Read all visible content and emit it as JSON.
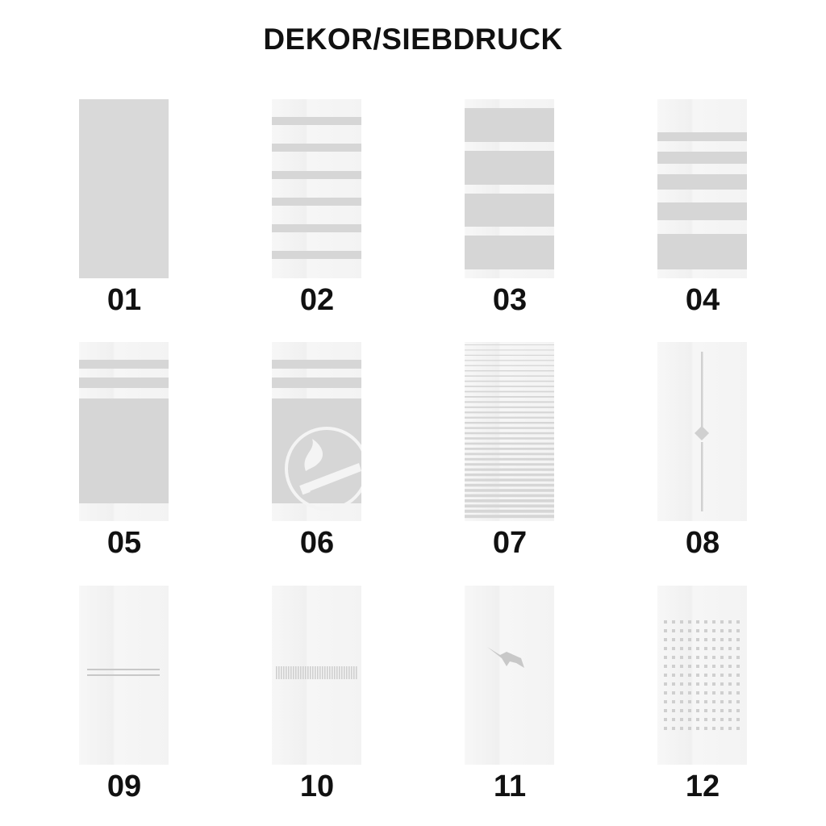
{
  "title": "DEKOR/SIEBDRUCK",
  "colors": {
    "glass": "#f4f4f4",
    "print": "#d6d6d6",
    "text": "#111111"
  },
  "designs": [
    {
      "label": "01",
      "pattern": "full-frosted"
    },
    {
      "label": "02",
      "pattern": "six-thin-stripes"
    },
    {
      "label": "03",
      "pattern": "four-wide-blocks"
    },
    {
      "label": "04",
      "pattern": "graduated-stripes"
    },
    {
      "label": "05",
      "pattern": "two-stripes-and-block"
    },
    {
      "label": "06",
      "pattern": "two-stripes-and-smoking-symbol"
    },
    {
      "label": "07",
      "pattern": "fine-horizontal-lines"
    },
    {
      "label": "08",
      "pattern": "vertical-line-with-diamond"
    },
    {
      "label": "09",
      "pattern": "double-horizontal-line"
    },
    {
      "label": "10",
      "pattern": "vertical-bar-band"
    },
    {
      "label": "11",
      "pattern": "bird"
    },
    {
      "label": "12",
      "pattern": "dot-grid"
    }
  ]
}
